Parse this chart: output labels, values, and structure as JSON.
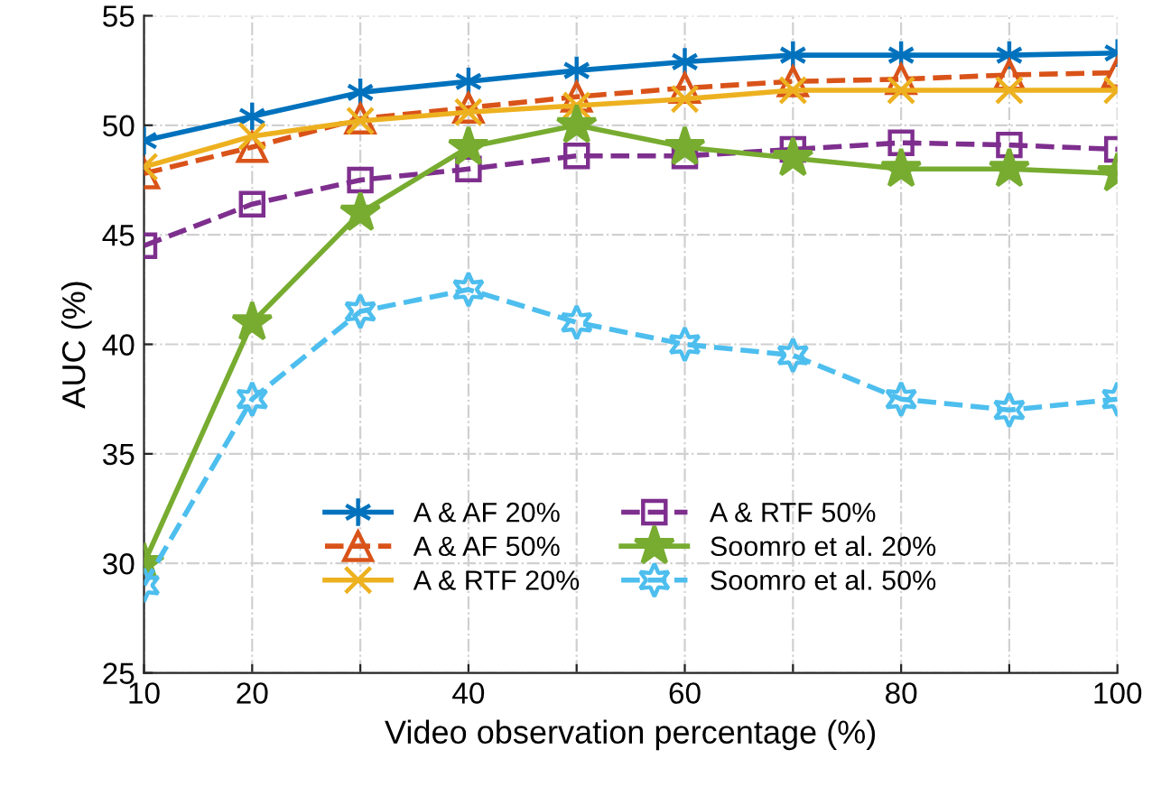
{
  "chart_data": {
    "type": "line",
    "xlabel": "Video observation percentage (%)",
    "ylabel": "AUC (%)",
    "x": [
      10,
      20,
      30,
      40,
      50,
      60,
      70,
      80,
      90,
      100
    ],
    "xlim": [
      10,
      100
    ],
    "xticks": [
      10,
      20,
      {
        "value": 30,
        "label": null
      },
      40,
      {
        "value": 50,
        "label": null
      },
      60,
      {
        "value": 70,
        "label": null
      },
      80,
      {
        "value": 90,
        "label": null
      },
      100
    ],
    "ylim": [
      25,
      55
    ],
    "yticks": [
      25,
      30,
      35,
      40,
      45,
      50,
      55
    ],
    "grid": true,
    "legend": "bottom",
    "series": [
      {
        "name": "A & AF 20%",
        "color": "#0072bd",
        "marker": "cross",
        "line_style": "solid",
        "values": [
          49.3,
          50.4,
          51.5,
          52.0,
          52.5,
          52.9,
          53.2,
          53.2,
          53.2,
          53.3
        ]
      },
      {
        "name": "A & AF 50%",
        "color": "#d95319",
        "marker": "triangle",
        "line_style": "dashed",
        "values": [
          47.8,
          49.0,
          50.3,
          50.8,
          51.3,
          51.7,
          52.0,
          52.1,
          52.3,
          52.4
        ]
      },
      {
        "name": "A & RTF 20%",
        "color": "#edb120",
        "marker": "cross",
        "line_style": "solid",
        "values": [
          48.1,
          49.5,
          50.2,
          50.6,
          50.9,
          51.2,
          51.6,
          51.6,
          51.6,
          51.6
        ]
      },
      {
        "name": "A & RTF 50%",
        "color": "#7e2f8e",
        "marker": "square",
        "line_style": "dashed",
        "values": [
          44.5,
          46.4,
          47.5,
          48.0,
          48.6,
          48.6,
          48.9,
          49.2,
          49.1,
          48.9
        ]
      },
      {
        "name": "Soomro et al. 20%",
        "color": "#77ac30",
        "marker": "star",
        "line_style": "solid",
        "values": [
          30,
          41,
          46,
          49,
          50,
          49,
          48.5,
          48,
          48,
          47.8
        ]
      },
      {
        "name": "Soomro et al. 50%",
        "color": "#4dbeee",
        "marker": "cross",
        "line_style": "dashed",
        "values": [
          29,
          37.5,
          41.5,
          42.5,
          41,
          40,
          39.5,
          37.5,
          37,
          37.5
        ]
      }
    ]
  }
}
